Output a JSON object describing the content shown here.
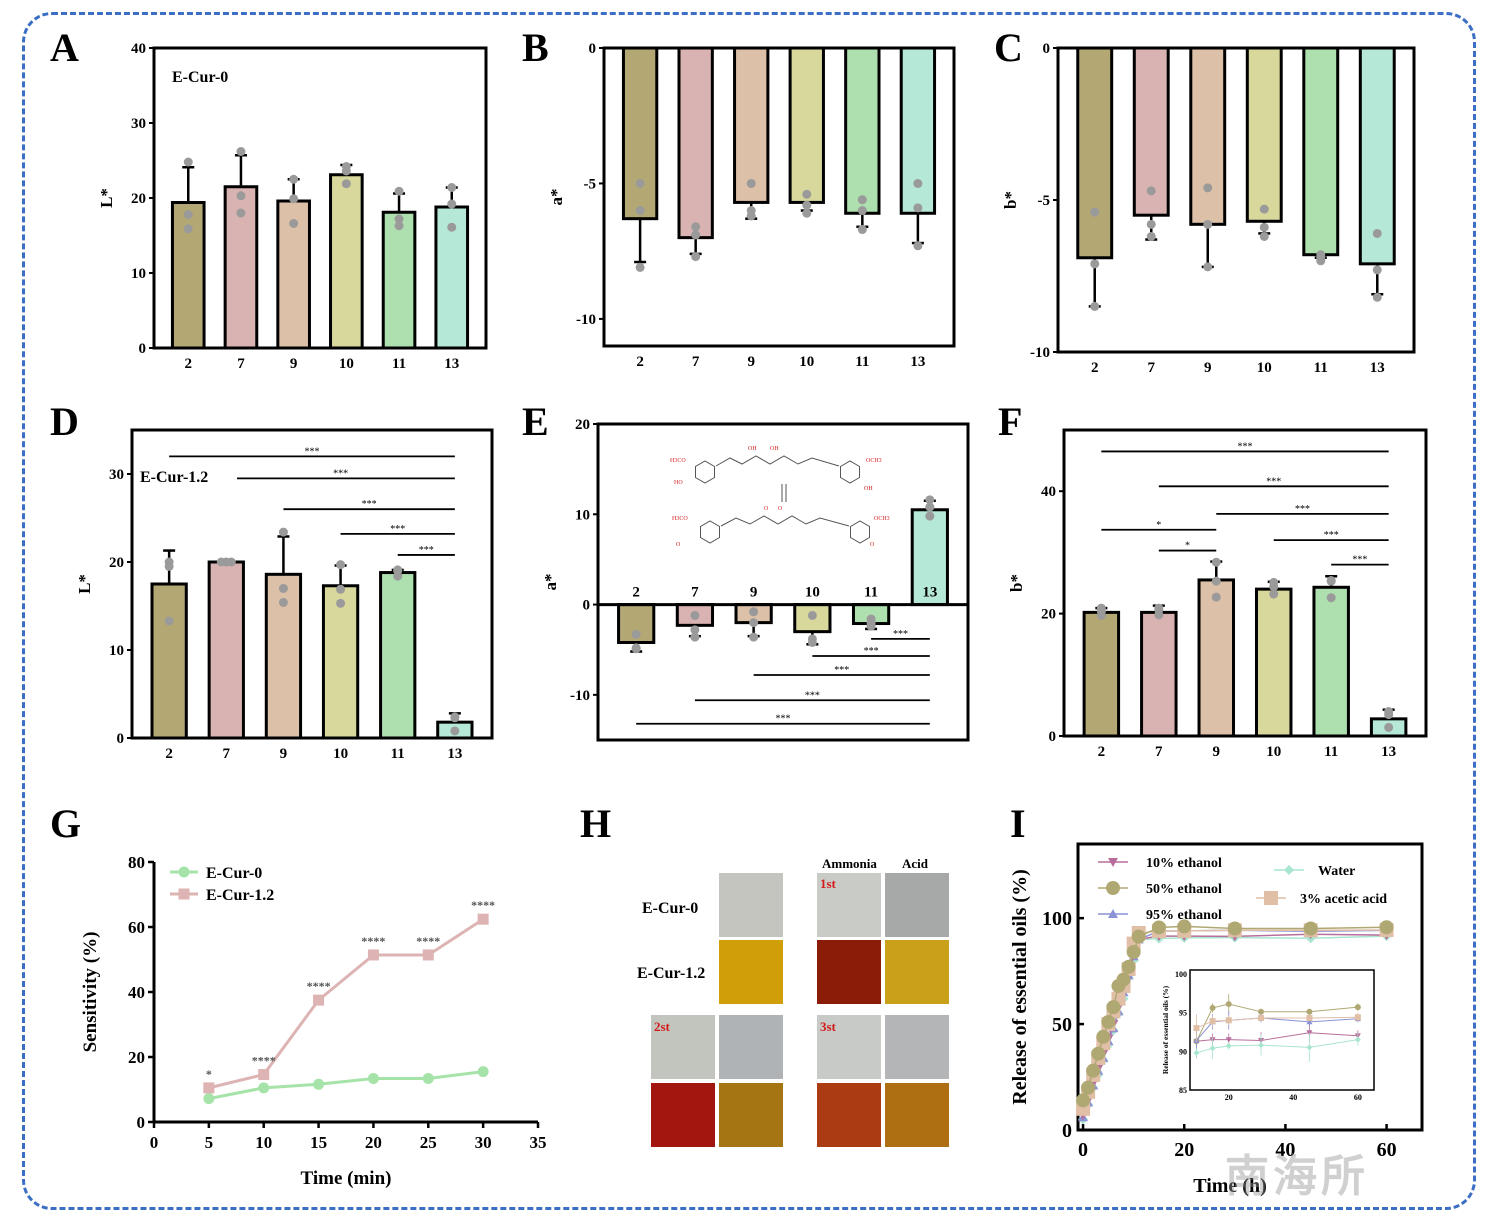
{
  "panel_labels": [
    "A",
    "B",
    "C",
    "D",
    "E",
    "F",
    "G",
    "H",
    "I"
  ],
  "bar_colors": [
    "#b3a873",
    "#d9b3b2",
    "#dcc0a8",
    "#d8d89c",
    "#aedfae",
    "#b6e8d7"
  ],
  "chart_data": [
    {
      "id": "A",
      "type": "bar",
      "title": "",
      "annotation": "E-Cur-0",
      "categories": [
        "2",
        "7",
        "9",
        "10",
        "11",
        "13"
      ],
      "values": [
        19.4,
        21.5,
        19.6,
        23.1,
        18.1,
        18.8
      ],
      "errors": [
        4.7,
        4.2,
        2.9,
        1.3,
        2.5,
        2.6
      ],
      "points": [
        [
          24.8,
          17.8,
          15.9
        ],
        [
          26.2,
          20.3,
          18.0
        ],
        [
          22.5,
          19.9,
          16.6
        ],
        [
          24.2,
          23.6,
          21.9
        ],
        [
          20.9,
          17.2,
          16.3
        ],
        [
          21.4,
          19.2,
          16.1
        ]
      ],
      "xlabel": "",
      "ylabel": "L*",
      "ylim": [
        0,
        40
      ],
      "yticks": [
        0,
        10,
        20,
        30,
        40
      ]
    },
    {
      "id": "B",
      "type": "bar",
      "title": "",
      "categories": [
        "2",
        "7",
        "9",
        "10",
        "11",
        "13"
      ],
      "values": [
        -6.3,
        -7.0,
        -5.7,
        -5.7,
        -6.1,
        -6.1
      ],
      "errors": [
        1.6,
        0.6,
        0.6,
        0.3,
        0.5,
        1.1
      ],
      "points": [
        [
          -5.0,
          -6.0,
          -8.1
        ],
        [
          -6.6,
          -6.9,
          -7.7
        ],
        [
          -5.0,
          -6.2,
          -6.0
        ],
        [
          -5.4,
          -5.8,
          -6.1
        ],
        [
          -5.6,
          -6.0,
          -6.7
        ],
        [
          -5.0,
          -5.9,
          -7.3
        ]
      ],
      "xlabel": "",
      "ylabel": "a*",
      "ylim": [
        -11,
        0
      ],
      "yticks": [
        0,
        -5,
        -10
      ]
    },
    {
      "id": "C",
      "type": "bar",
      "title": "",
      "categories": [
        "2",
        "7",
        "9",
        "10",
        "11",
        "13"
      ],
      "values": [
        -6.9,
        -5.5,
        -5.8,
        -5.7,
        -6.8,
        -7.1
      ],
      "errors": [
        1.6,
        0.8,
        1.4,
        0.4,
        0.1,
        1.0
      ],
      "points": [
        [
          -5.4,
          -7.1,
          -8.5
        ],
        [
          -4.7,
          -5.8,
          -6.2
        ],
        [
          -4.6,
          -5.8,
          -7.2
        ],
        [
          -5.3,
          -5.9,
          -6.2
        ],
        [
          -6.8,
          -7.0,
          -6.9
        ],
        [
          -6.1,
          -7.3,
          -8.2
        ]
      ],
      "xlabel": "",
      "ylabel": "b*",
      "ylim": [
        -10,
        0
      ],
      "yticks": [
        0,
        -5,
        -10
      ]
    },
    {
      "id": "D",
      "type": "bar",
      "title": "",
      "annotation": "E-Cur-1.2",
      "categories": [
        "2",
        "7",
        "9",
        "10",
        "11",
        "13"
      ],
      "values": [
        17.5,
        20.0,
        18.6,
        17.3,
        18.8,
        1.8
      ],
      "errors": [
        3.8,
        0.1,
        4.3,
        2.3,
        0.3,
        1.0
      ],
      "points": [
        [
          20.0,
          19.5,
          13.3
        ],
        [
          20.0,
          20.0,
          20.0
        ],
        [
          23.4,
          17.0,
          15.4
        ],
        [
          19.7,
          16.9,
          15.3
        ],
        [
          19.1,
          18.4,
          19.0
        ],
        [
          2.4,
          0.8,
          2.3
        ]
      ],
      "significance": [
        {
          "from": "2",
          "to": "13",
          "label": "***"
        },
        {
          "from": "7",
          "to": "13",
          "label": "***"
        },
        {
          "from": "9",
          "to": "13",
          "label": "***"
        },
        {
          "from": "10",
          "to": "13",
          "label": "***"
        },
        {
          "from": "11",
          "to": "13",
          "label": "***"
        }
      ],
      "xlabel": "",
      "ylabel": "L*",
      "ylim": [
        0,
        35
      ],
      "yticks": [
        0,
        10,
        20,
        30
      ]
    },
    {
      "id": "E",
      "type": "bar",
      "title": "",
      "categories": [
        "2",
        "7",
        "9",
        "10",
        "11",
        "13"
      ],
      "values": [
        -4.2,
        -2.3,
        -2.0,
        -3.0,
        -2.1,
        10.5
      ],
      "errors": [
        1.0,
        1.2,
        1.5,
        1.4,
        0.6,
        1.0
      ],
      "points": [
        [
          -3.3,
          -4.8,
          -4.9
        ],
        [
          -1.2,
          -2.8,
          -3.6
        ],
        [
          -0.8,
          -2.0,
          -3.6
        ],
        [
          -1.2,
          -3.8,
          -4.2
        ],
        [
          -1.6,
          -2.4,
          -2.1
        ],
        [
          11.6,
          10.8,
          9.8
        ]
      ],
      "significance": [
        {
          "from": "11",
          "to": "13",
          "label": "***"
        },
        {
          "from": "10",
          "to": "13",
          "label": "***"
        },
        {
          "from": "9",
          "to": "13",
          "label": "***"
        },
        {
          "from": "7",
          "to": "13",
          "label": "***"
        },
        {
          "from": "2",
          "to": "13",
          "label": "***"
        }
      ],
      "inset_image": "curcumin-keto-enol-structure",
      "structure_labels": [
        "H3CO",
        "HO",
        "OH",
        "OH",
        "OCH3",
        "OH",
        "H3CO",
        "O",
        "O",
        "O",
        "OCH3",
        "O"
      ],
      "xlabel": "",
      "ylabel": "a*",
      "ylim": [
        -15,
        20
      ],
      "yticks": [
        -10,
        0,
        10,
        20
      ]
    },
    {
      "id": "F",
      "type": "bar",
      "title": "",
      "categories": [
        "2",
        "7",
        "9",
        "10",
        "11",
        "13"
      ],
      "values": [
        20.2,
        20.2,
        25.5,
        24.0,
        24.3,
        2.8
      ],
      "errors": [
        0.7,
        1.1,
        3.0,
        1.2,
        1.8,
        1.5
      ],
      "points": [
        [
          20.9,
          19.7,
          20.4
        ],
        [
          20.9,
          19.8,
          20.6
        ],
        [
          28.4,
          25.3,
          22.7
        ],
        [
          25.1,
          24.4,
          23.2
        ],
        [
          25.3,
          22.6,
          25.4
        ],
        [
          4.0,
          1.4,
          3.5
        ]
      ],
      "significance": [
        {
          "from": "2",
          "to": "13",
          "label": "***"
        },
        {
          "from": "7",
          "to": "13",
          "label": "***"
        },
        {
          "from": "9",
          "to": "13",
          "label": "***"
        },
        {
          "from": "2",
          "to": "9",
          "label": "*"
        },
        {
          "from": "10",
          "to": "13",
          "label": "***"
        },
        {
          "from": "7",
          "to": "9",
          "label": "*"
        },
        {
          "from": "11",
          "to": "13",
          "label": "***"
        }
      ],
      "xlabel": "",
      "ylabel": "b*",
      "ylim": [
        0,
        50
      ],
      "yticks": [
        0,
        20,
        40
      ]
    },
    {
      "id": "G",
      "type": "line",
      "title": "",
      "x": [
        5,
        10,
        15,
        20,
        25,
        30
      ],
      "series": [
        {
          "name": "E-Cur-0",
          "values": [
            7.2,
            10.5,
            11.6,
            13.4,
            13.4,
            15.5
          ],
          "color": "#a6e3a8",
          "marker": "circle"
        },
        {
          "name": "E-Cur-1.2",
          "values": [
            10.5,
            14.6,
            37.5,
            51.4,
            51.4,
            62.4
          ],
          "color": "#ddb3b3",
          "marker": "square"
        }
      ],
      "annotations": [
        "*",
        "****",
        "****",
        "****",
        "****",
        "****"
      ],
      "xlabel": "Time (min)",
      "ylabel": "Sensitivity (%)",
      "xlim": [
        0,
        35
      ],
      "ylim": [
        0,
        80
      ],
      "xticks": [
        0,
        5,
        10,
        15,
        20,
        25,
        30,
        35
      ],
      "yticks": [
        0,
        20,
        40,
        60,
        80
      ],
      "legend": "top-left"
    },
    {
      "id": "I",
      "type": "line",
      "title": "",
      "x": [
        0,
        1,
        2,
        3,
        4,
        5,
        6,
        7,
        8,
        9,
        10,
        11,
        15,
        20,
        30,
        45,
        60
      ],
      "series": [
        {
          "name": "10% ethanol",
          "color": "#b86e9c",
          "marker": "triangle-down",
          "values": [
            7,
            14,
            22,
            29,
            36,
            43,
            50,
            58,
            66,
            74,
            83,
            90,
            91.5,
            91.5,
            91.4,
            92.4,
            92.0
          ]
        },
        {
          "name": "50% ethanol",
          "color": "#b0a872",
          "marker": "circle",
          "values": [
            14,
            20,
            28,
            36,
            44,
            51,
            58,
            68,
            71,
            77,
            84,
            91.3,
            95.6,
            96.1,
            95.1,
            95.1,
            95.7
          ]
        },
        {
          "name": "95% ethanol",
          "color": "#8c92d6",
          "marker": "triangle-up",
          "values": [
            6,
            13,
            21,
            28,
            34,
            42,
            48,
            56,
            65,
            73,
            82,
            90,
            93.8,
            94.0,
            94.3,
            93.8,
            94.2
          ]
        },
        {
          "name": "Water",
          "color": "#a8e6cf",
          "marker": "diamond",
          "values": [
            5,
            12,
            20,
            26,
            33,
            40,
            47,
            55,
            62,
            72,
            80,
            89.8,
            90.4,
            90.7,
            90.8,
            90.5,
            91.5
          ]
        },
        {
          "name": "3% acetic acid",
          "color": "#e0bfa6",
          "marker": "square",
          "values": [
            10,
            18,
            26,
            34,
            41,
            50,
            56,
            62,
            68,
            76,
            88,
            93.0,
            93.9,
            94.0,
            94.3,
            94.3,
            94.4
          ]
        }
      ],
      "xlabel": "Time (h)",
      "ylabel": "Release of essential oils (%)",
      "xlim": [
        -1,
        67
      ],
      "ylim": [
        0,
        135
      ],
      "xticks": [
        0,
        20,
        40,
        60
      ],
      "yticks": [
        0,
        50,
        100
      ],
      "legend": "top",
      "inset": {
        "ylabel": "Release of essential oils (%)",
        "xlim": [
          8,
          65
        ],
        "ylim": [
          85,
          100.5
        ],
        "xticks": [
          20,
          40,
          60
        ],
        "yticks": [
          85,
          90,
          95,
          100
        ],
        "x": [
          10,
          15,
          20,
          30,
          45,
          60
        ],
        "series": [
          {
            "name": "10% ethanol",
            "values": [
              91.3,
              91.5,
              91.5,
              91.4,
              92.4,
              92.0
            ],
            "errors": [
              0.7,
              0.8,
              0.8,
              1.1,
              1.2,
              0.7
            ]
          },
          {
            "name": "50% ethanol",
            "values": [
              91.3,
              95.6,
              96.1,
              95.1,
              95.1,
              95.7
            ],
            "errors": [
              2.2,
              0.6,
              1.3,
              0.4,
              0.4,
              0.5
            ]
          },
          {
            "name": "95% ethanol",
            "values": [
              91.4,
              93.8,
              94.0,
              94.3,
              93.8,
              94.2
            ],
            "errors": [
              1.2,
              1.0,
              1.2,
              0.6,
              0.6,
              0.5
            ]
          },
          {
            "name": "Water",
            "values": [
              89.8,
              90.4,
              90.7,
              90.8,
              90.5,
              91.5
            ],
            "errors": [
              0.6,
              1.4,
              0.5,
              1.4,
              1.9,
              0.8
            ]
          },
          {
            "name": "3% acetic acid",
            "values": [
              93.0,
              93.9,
              94.0,
              94.3,
              94.3,
              94.4
            ],
            "errors": [
              1.8,
              0.7,
              0.6,
              0.4,
              0.4,
              0.6
            ]
          }
        ]
      }
    }
  ],
  "panel_H": {
    "column_headers": [
      "Ammonia",
      "Acid"
    ],
    "row_labels": [
      "E-Cur-0",
      "E-Cur-1.2"
    ],
    "cycle_labels": [
      "1st",
      "2st",
      "3st"
    ],
    "swatches": {
      "initial": {
        "E-Cur-0": "#c4c5be",
        "E-Cur-1.2": "#cf9e09"
      },
      "cycle_1": {
        "E-Cur-0": [
          "#c9cbc7",
          "#a7a9a8"
        ],
        "E-Cur-1.2": [
          "#8a1c08",
          "#c9a01a"
        ]
      },
      "cycle_2": {
        "E-Cur-0": [
          "#c2c4be",
          "#b0b3b6"
        ],
        "E-Cur-1.2": [
          "#a3150f",
          "#a57514"
        ]
      },
      "cycle_3": {
        "E-Cur-0": [
          "#c7cac6",
          "#b3b5b7"
        ],
        "E-Cur-1.2": [
          "#ab3b12",
          "#ae6f12"
        ]
      }
    }
  },
  "watermark": "南海所",
  "frame_color": "#3b6fc4"
}
